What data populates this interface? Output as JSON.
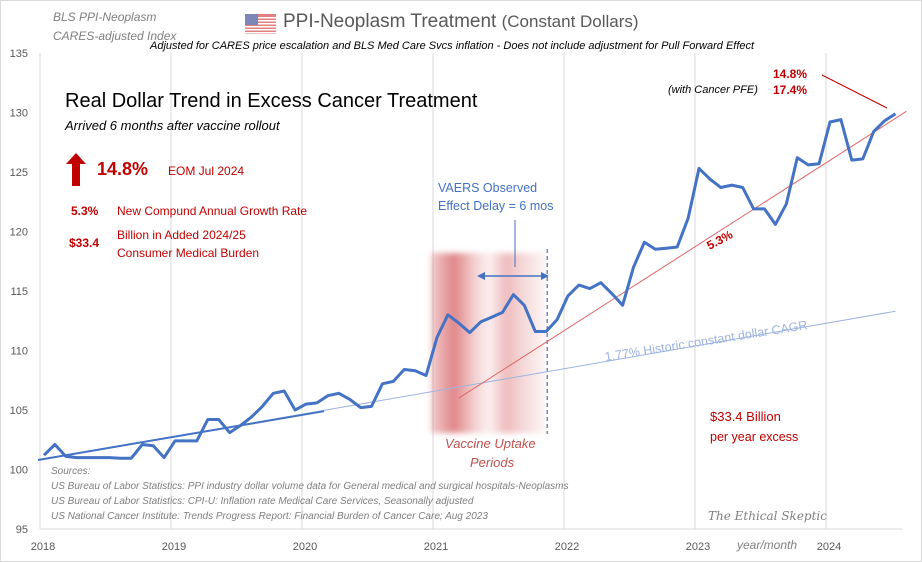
{
  "header": {
    "top_left_line1": "BLS PPI-Neoplasm",
    "top_left_line2": "CARES-adjusted Index",
    "title": "PPI-Neoplasm  Treatment",
    "title_suffix": "(Constant Dollars)",
    "subtitle": "Adjusted for CARES price  escalation and BLS Med Care Svcs inflation - Does not include adjustment  for Pull Forward  Effect",
    "flag_icon": "us-flag-icon"
  },
  "panel": {
    "headline": "Real Dollar Trend in Excess Cancer Treatment",
    "subhead": "Arrived 6 months after vaccine rollout",
    "big_pct": "14.8%",
    "big_pct_label": "EOM Jul 2024",
    "cagr_value": "5.3%",
    "cagr_label": "New Compund Annual Growth Rate",
    "burden_value": "$33.4",
    "burden_label_1": "Billion in Added 2024/25",
    "burden_label_2": "Consumer Medical Burden",
    "arrow_icon": "up-arrow-icon"
  },
  "annotations": {
    "pct_148": "14.8%",
    "pfe_label": "(with Cancer PFE)",
    "pct_174": "17.4%",
    "vaers_1": "VAERS Observed",
    "vaers_2": "Effect Delay = 6 mos",
    "uptake_1": "Vaccine Uptake",
    "uptake_2": "Periods",
    "trend_label": "5.3%",
    "historic_label": "1.77%   Historic constant dollar CAGR",
    "excess_1": "$33.4 Billion",
    "excess_2": "per year excess",
    "watermark": "The Ethical Skeptic",
    "xlabel": "year/month"
  },
  "sources": {
    "title": "Sources:",
    "items": [
      "US Bureau of Labor Statistics: PPI industry dollar volume data for General medical and surgical hospitals-Neoplasms",
      "US Bureau of Labor Statistics: CPI-U: Inflation rate Medical Care Services, Seasonally adjusted",
      "US National Cancer Institute: Trends Progress Report: Financial Burden of Cancer Care; Aug 2023"
    ]
  },
  "colors": {
    "series": "#4472c4",
    "trend": "#e06666",
    "historic": "#9db4e0",
    "accent": "#c00000",
    "shade": "#d9696c"
  },
  "chart_data": {
    "type": "line",
    "xlabel": "year/month",
    "ylim": [
      95,
      135
    ],
    "yticks": [
      95,
      100,
      105,
      110,
      115,
      120,
      125,
      130,
      135
    ],
    "xticks": [
      "2018",
      "2019",
      "2020",
      "2021",
      "2022",
      "2023",
      "2024"
    ],
    "grid": "vertical",
    "x_start": "2018-01",
    "x_end": "2024-07",
    "series": [
      {
        "values": [
          101.2,
          102.1,
          101.1,
          101.0,
          101.0,
          101.0,
          101.0,
          100.95,
          100.95,
          102.1,
          102.0,
          101.0,
          102.4,
          102.4,
          102.4,
          104.2,
          104.2,
          103.1,
          103.7,
          104.4,
          105.3,
          106.4,
          106.6,
          105.0,
          105.5,
          105.6,
          106.2,
          106.4,
          105.9,
          105.2,
          105.3,
          107.2,
          107.4,
          108.4,
          108.3,
          107.9,
          111.1,
          113.0,
          112.3,
          111.5,
          112.4,
          112.8,
          113.2,
          114.7,
          113.8,
          111.6,
          111.6,
          112.6,
          114.6,
          115.5,
          115.2,
          115.7,
          114.8,
          113.8,
          117.0,
          119.1,
          118.5,
          118.6,
          118.7,
          121.1,
          125.3,
          124.4,
          123.7,
          123.9,
          123.7,
          121.9,
          121.9,
          120.6,
          122.3,
          126.2,
          125.6,
          125.7,
          129.2,
          129.4,
          126.0,
          126.1,
          128.4,
          129.3,
          129.9
        ]
      }
    ],
    "trendlines": [
      {
        "label": "1.77%",
        "from": [
          "2018-01",
          100.8
        ],
        "to": [
          "2024-07",
          113.3
        ]
      },
      {
        "label": "5.3%",
        "from": [
          "2021-03",
          106.0
        ],
        "to": [
          "2024-08",
          130.1
        ]
      }
    ],
    "shaded_period": {
      "label": "Vaccine Uptake Periods",
      "from": "2021-01",
      "to": "2021-11"
    }
  }
}
